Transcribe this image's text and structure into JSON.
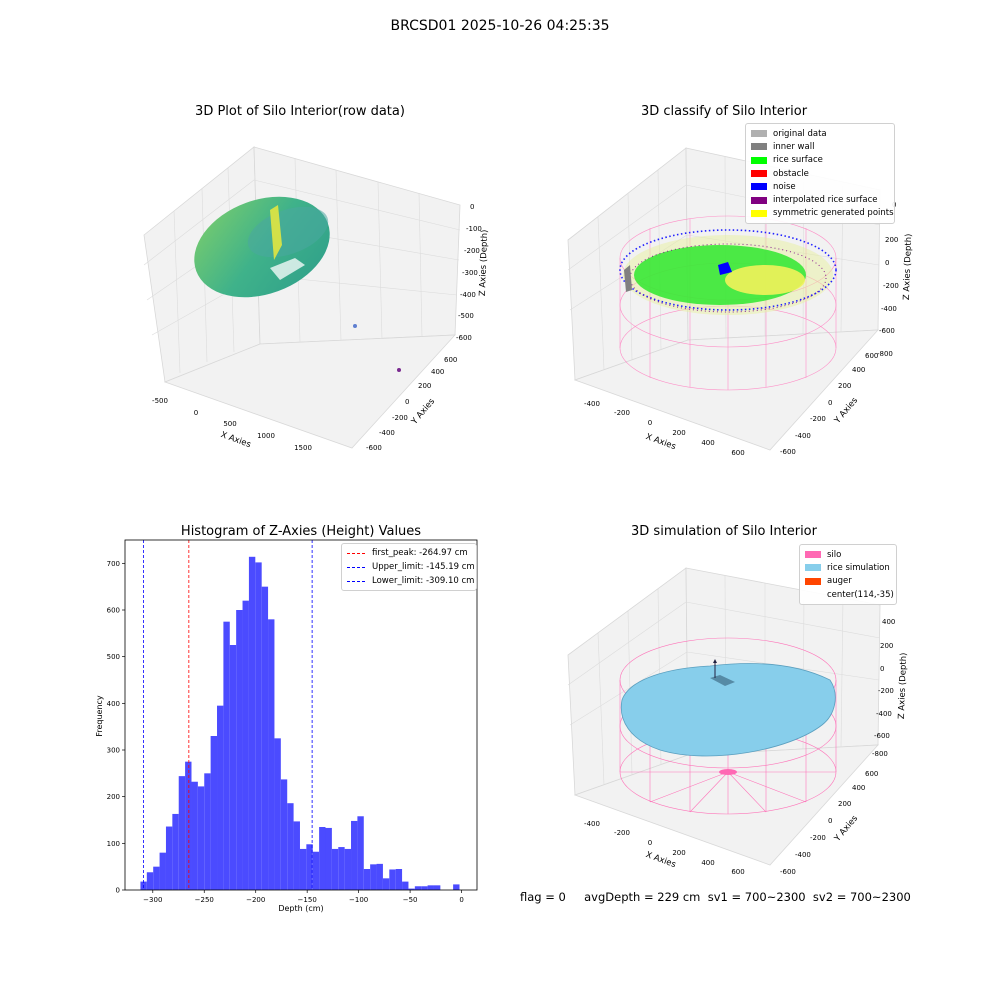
{
  "suptitle": "BRCSD01 2025-10-26 04:25:35",
  "footer": "flag = 0     avgDepth = 229 cm  sv1 = 700~2300  sv2 = 700~2300",
  "plots": {
    "raw": {
      "title": "3D Plot of Silo Interior(row data)",
      "xlabel": "X Axies",
      "ylabel": "Y Axies",
      "zlabel": "Z Axies (Depth)",
      "xticks": [
        "-500",
        "0",
        "500",
        "1000",
        "1500"
      ],
      "yticks": [
        "-600",
        "-400",
        "-200",
        "0",
        "200",
        "400",
        "600"
      ],
      "zticks": [
        "0",
        "-100",
        "-200",
        "-300",
        "-400",
        "-500",
        "-600"
      ]
    },
    "classify": {
      "title": "3D classify of Silo Interior",
      "xlabel": "X Axies",
      "ylabel": "Y Axies",
      "zlabel": "Z Axies (Depth)",
      "xticks": [
        "-400",
        "-200",
        "0",
        "200",
        "400",
        "600"
      ],
      "yticks": [
        "-600",
        "-400",
        "-200",
        "0",
        "200",
        "400",
        "600"
      ],
      "zticks": [
        "200",
        "0",
        "-200",
        "-400",
        "-600",
        "-800"
      ],
      "z_top_tick": "0",
      "legend": [
        {
          "label": "original data",
          "color": "#b0b0b0"
        },
        {
          "label": "inner wall",
          "color": "#808080"
        },
        {
          "label": "rice surface",
          "color": "#00ff00"
        },
        {
          "label": "obstacle",
          "color": "#ff0000"
        },
        {
          "label": "noise",
          "color": "#0000ff"
        },
        {
          "label": "interpolated rice surface",
          "color": "#800080"
        },
        {
          "label": "symmetric generated points",
          "color": "#ffff00"
        }
      ]
    },
    "simulation": {
      "title": "3D simulation of Silo Interior",
      "xlabel": "X Axies",
      "ylabel": "Y Axies",
      "zlabel": "Z Axies (Depth)",
      "xticks": [
        "-400",
        "-200",
        "0",
        "200",
        "400",
        "600"
      ],
      "yticks": [
        "-600",
        "-400",
        "-200",
        "0",
        "200",
        "400",
        "600"
      ],
      "zticks": [
        "400",
        "200",
        "0",
        "-200",
        "-400",
        "-600",
        "-800"
      ],
      "legend": [
        {
          "label": "silo",
          "color": "#ff69b4"
        },
        {
          "label": "rice simulation",
          "color": "#87ceeb"
        },
        {
          "label": "auger",
          "color": "#ff4500"
        },
        {
          "label": "center(114,-35)",
          "color": ""
        }
      ]
    }
  },
  "chart_data": {
    "type": "bar",
    "title": "Histogram of Z-Axies (Height) Values",
    "xlabel": "Depth (cm)",
    "ylabel": "Frequency",
    "xlim": [
      -327,
      15
    ],
    "ylim": [
      0,
      750
    ],
    "xticks": [
      -300,
      -250,
      -200,
      -150,
      -100,
      -50,
      0
    ],
    "yticks": [
      0,
      100,
      200,
      300,
      400,
      500,
      600,
      700
    ],
    "bar_color": "#4b4bff",
    "bin_width": 6.2,
    "x_start": -312,
    "values": [
      18,
      38,
      50,
      80,
      136,
      163,
      244,
      275,
      232,
      222,
      250,
      330,
      395,
      575,
      525,
      600,
      620,
      714,
      702,
      650,
      580,
      325,
      237,
      186,
      147,
      88,
      98,
      82,
      135,
      133,
      88,
      92,
      88,
      148,
      158,
      45,
      55,
      56,
      25,
      44,
      45,
      18,
      3,
      8,
      8,
      10,
      10,
      0,
      0,
      12
    ],
    "vlines": [
      {
        "label": "first_peak: -264.97 cm",
        "x": -264.97,
        "color": "#ff0000"
      },
      {
        "label": "Upper_limit: -145.19 cm",
        "x": -145.19,
        "color": "#0000ff"
      },
      {
        "label": "Lower_limit: -309.10 cm",
        "x": -309.1,
        "color": "#0000ff"
      }
    ],
    "legend_position": "top-right"
  }
}
